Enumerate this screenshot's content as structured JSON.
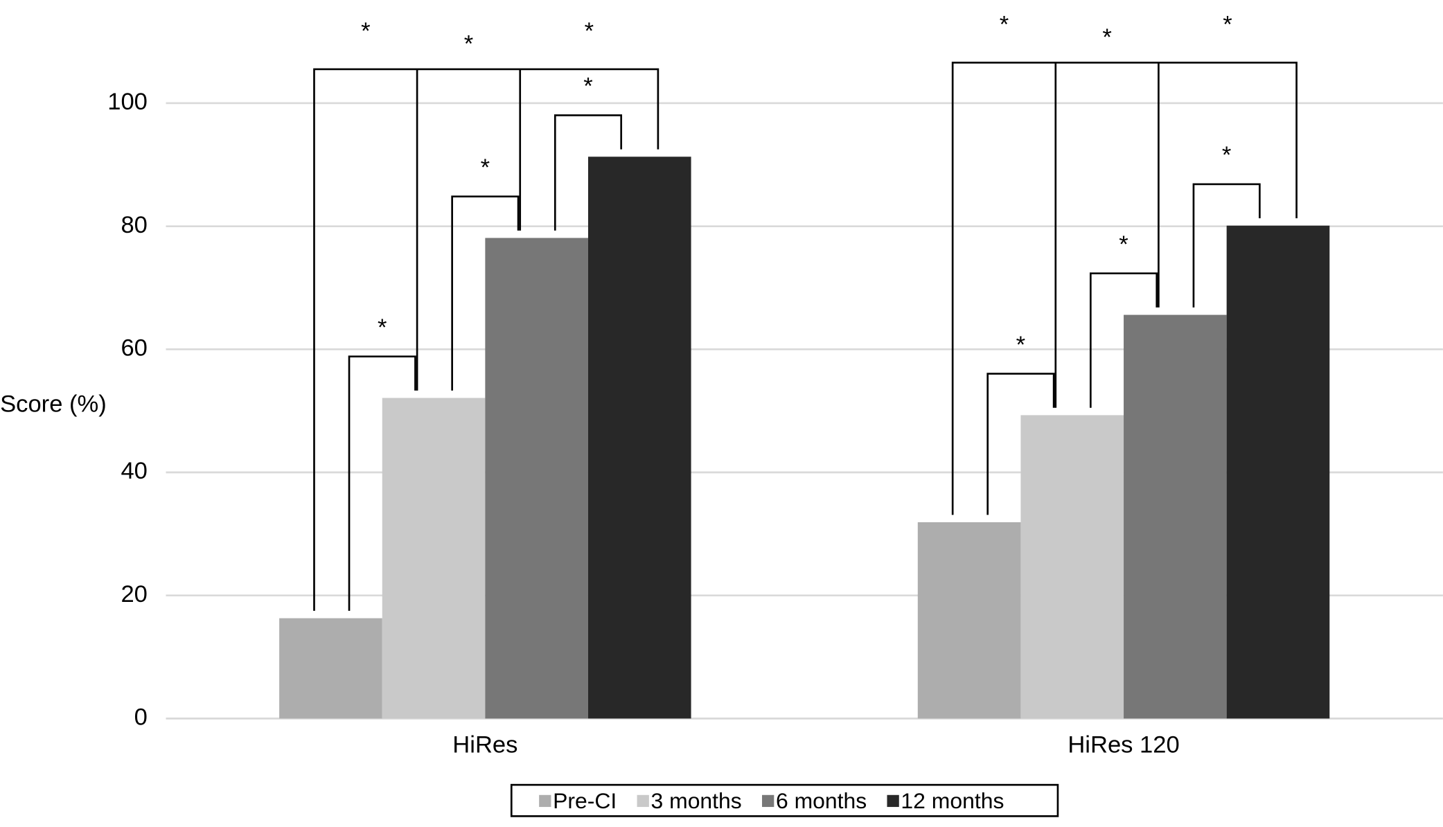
{
  "chart_data": {
    "type": "bar",
    "categories": [
      "HiRes",
      "HiRes 120"
    ],
    "y_label": "Score (%)",
    "series": [
      {
        "name": "Pre-CI",
        "color": "#adadad",
        "values": [
          16.3,
          31.9
        ]
      },
      {
        "name": "3 months",
        "color": "#c9c9c9",
        "values": [
          52.1,
          49.3
        ]
      },
      {
        "name": "6 months",
        "color": "#777777",
        "values": [
          78.1,
          65.6
        ]
      },
      {
        "name": "12 months",
        "color": "#282828",
        "values": [
          91.3,
          80.1
        ]
      }
    ],
    "ylim": [
      0,
      100
    ],
    "yticks": [
      0,
      20,
      40,
      60,
      80,
      100
    ],
    "grid": true,
    "legend": "bottom",
    "significance": [
      [
        {
          "pair": [
            0,
            1
          ],
          "label": "*"
        },
        {
          "pair": [
            1,
            2
          ],
          "label": "*"
        },
        {
          "pair": [
            2,
            3
          ],
          "label": "*"
        },
        {
          "pair": [
            0,
            3
          ],
          "label": "*"
        },
        {
          "pair": [
            1,
            3
          ],
          "label": "*"
        },
        {
          "pair": [
            2,
            3
          ],
          "label": "*"
        }
      ],
      [
        {
          "pair": [
            0,
            1
          ],
          "label": "*"
        },
        {
          "pair": [
            1,
            2
          ],
          "label": "*"
        },
        {
          "pair": [
            2,
            3
          ],
          "label": "*"
        },
        {
          "pair": [
            0,
            3
          ],
          "label": "*"
        },
        {
          "pair": [
            1,
            3
          ],
          "label": "*"
        },
        {
          "pair": [
            2,
            3
          ],
          "label": "*"
        }
      ]
    ]
  }
}
